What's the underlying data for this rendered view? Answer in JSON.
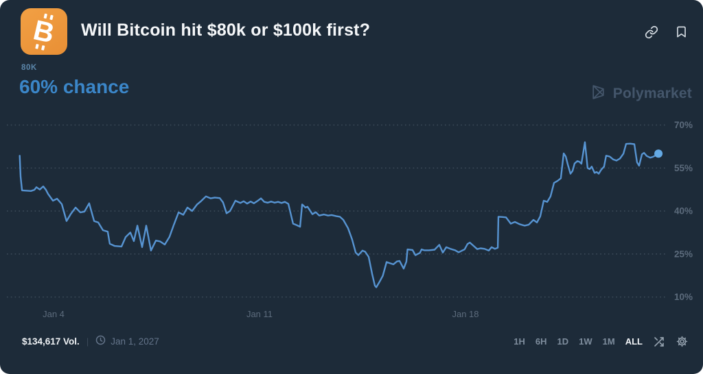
{
  "header": {
    "title": "Will Bitcoin hit $80k or $100k first?"
  },
  "icons": {
    "bitcoin_letter": "B"
  },
  "market": {
    "outcome_label": "80K",
    "chance_text": "60% chance"
  },
  "watermark": {
    "brand": "Polymarket"
  },
  "footer": {
    "volume": "$134,617 Vol.",
    "divider": "|",
    "date": "Jan 1, 2027",
    "ranges": [
      "1H",
      "6H",
      "1D",
      "1W",
      "1M",
      "ALL"
    ],
    "selected_range": "ALL"
  },
  "colors": {
    "background": "#1d2b39",
    "accent_orange": "#ef9a3f",
    "line_blue": "#5794d2",
    "dot_blue": "#64a9e4",
    "chance_blue": "#3b86c8",
    "outcome_blue": "#5b86aa",
    "grid_gray": "#8c9baa",
    "axis_label_gray": "#5c6b7c",
    "muted_gray": "#7e8d9d",
    "white": "#f5f7f9"
  },
  "chart_data": {
    "type": "line",
    "title": "Will Bitcoin hit $80k or $100k first?",
    "legend": "none",
    "grid": "dotted-horizontal",
    "x_unit": "day of January 2027",
    "x_domain": [
      2.85,
      24.56
    ],
    "x_ticks": [
      {
        "label": "Jan 4",
        "day": 4
      },
      {
        "label": "Jan 11",
        "day": 11
      },
      {
        "label": "Jan 18",
        "day": 18
      }
    ],
    "y_unit": "percent chance",
    "y_ticks": [
      {
        "label": "70%",
        "value": 70
      },
      {
        "label": "55%",
        "value": 55
      },
      {
        "label": "40%",
        "value": 40
      },
      {
        "label": "25%",
        "value": 25
      },
      {
        "label": "10%",
        "value": 10
      }
    ],
    "current_value_pct": 60,
    "series": [
      {
        "name": "80K",
        "points": [
          [
            2.85,
            59.3
          ],
          [
            2.88,
            52.0
          ],
          [
            2.93,
            47.2
          ],
          [
            3.23,
            47.0
          ],
          [
            3.35,
            47.4
          ],
          [
            3.42,
            48.3
          ],
          [
            3.53,
            47.5
          ],
          [
            3.65,
            48.6
          ],
          [
            3.74,
            47.4
          ],
          [
            3.81,
            46.0
          ],
          [
            3.98,
            43.6
          ],
          [
            4.12,
            44.3
          ],
          [
            4.28,
            42.4
          ],
          [
            4.44,
            36.5
          ],
          [
            4.58,
            38.9
          ],
          [
            4.75,
            41.2
          ],
          [
            4.91,
            39.5
          ],
          [
            5.05,
            39.8
          ],
          [
            5.21,
            42.7
          ],
          [
            5.38,
            36.5
          ],
          [
            5.52,
            36.0
          ],
          [
            5.68,
            33.3
          ],
          [
            5.84,
            32.8
          ],
          [
            5.91,
            28.6
          ],
          [
            6.08,
            27.8
          ],
          [
            6.31,
            27.6
          ],
          [
            6.45,
            30.9
          ],
          [
            6.61,
            32.5
          ],
          [
            6.73,
            29.5
          ],
          [
            6.85,
            34.9
          ],
          [
            7.01,
            27.4
          ],
          [
            7.15,
            34.9
          ],
          [
            7.31,
            26.2
          ],
          [
            7.48,
            29.7
          ],
          [
            7.62,
            29.4
          ],
          [
            7.78,
            28.3
          ],
          [
            7.94,
            31.0
          ],
          [
            8.08,
            35.0
          ],
          [
            8.25,
            39.5
          ],
          [
            8.41,
            38.7
          ],
          [
            8.55,
            41.2
          ],
          [
            8.71,
            40.0
          ],
          [
            8.88,
            42.3
          ],
          [
            9.02,
            43.5
          ],
          [
            9.18,
            45.1
          ],
          [
            9.34,
            44.4
          ],
          [
            9.48,
            44.7
          ],
          [
            9.65,
            44.5
          ],
          [
            9.76,
            43.0
          ],
          [
            9.88,
            39.2
          ],
          [
            10.0,
            40.0
          ],
          [
            10.18,
            43.6
          ],
          [
            10.35,
            42.8
          ],
          [
            10.46,
            43.4
          ],
          [
            10.58,
            42.6
          ],
          [
            10.7,
            43.3
          ],
          [
            10.81,
            42.7
          ],
          [
            10.93,
            43.5
          ],
          [
            11.05,
            44.4
          ],
          [
            11.16,
            43.2
          ],
          [
            11.28,
            42.9
          ],
          [
            11.4,
            43.3
          ],
          [
            11.51,
            42.9
          ],
          [
            11.63,
            43.2
          ],
          [
            11.75,
            42.8
          ],
          [
            11.86,
            43.2
          ],
          [
            11.98,
            42.5
          ],
          [
            12.14,
            35.6
          ],
          [
            12.28,
            35.0
          ],
          [
            12.38,
            34.5
          ],
          [
            12.45,
            42.3
          ],
          [
            12.56,
            41.2
          ],
          [
            12.63,
            41.5
          ],
          [
            12.8,
            38.9
          ],
          [
            12.91,
            39.6
          ],
          [
            13.03,
            38.4
          ],
          [
            13.19,
            38.8
          ],
          [
            13.33,
            38.4
          ],
          [
            13.45,
            38.6
          ],
          [
            13.61,
            38.2
          ],
          [
            13.73,
            38.0
          ],
          [
            13.85,
            36.9
          ],
          [
            14.01,
            34.0
          ],
          [
            14.15,
            30.0
          ],
          [
            14.27,
            25.5
          ],
          [
            14.36,
            24.6
          ],
          [
            14.5,
            26.2
          ],
          [
            14.59,
            25.8
          ],
          [
            14.71,
            24.0
          ],
          [
            14.83,
            18.0
          ],
          [
            14.92,
            14.0
          ],
          [
            14.97,
            13.4
          ],
          [
            15.09,
            15.5
          ],
          [
            15.19,
            17.4
          ],
          [
            15.32,
            22.2
          ],
          [
            15.43,
            21.8
          ],
          [
            15.55,
            21.4
          ],
          [
            15.67,
            22.4
          ],
          [
            15.76,
            22.6
          ],
          [
            15.9,
            19.9
          ],
          [
            15.99,
            22.3
          ],
          [
            16.03,
            26.6
          ],
          [
            16.2,
            26.4
          ],
          [
            16.3,
            24.6
          ],
          [
            16.45,
            25.4
          ],
          [
            16.51,
            26.6
          ],
          [
            16.6,
            26.3
          ],
          [
            16.76,
            26.3
          ],
          [
            16.95,
            26.5
          ],
          [
            17.11,
            28.2
          ],
          [
            17.23,
            25.5
          ],
          [
            17.35,
            27.4
          ],
          [
            17.49,
            26.8
          ],
          [
            17.65,
            26.3
          ],
          [
            17.77,
            25.6
          ],
          [
            17.97,
            26.6
          ],
          [
            18.07,
            28.5
          ],
          [
            18.15,
            29.0
          ],
          [
            18.28,
            27.8
          ],
          [
            18.4,
            26.7
          ],
          [
            18.51,
            27.0
          ],
          [
            18.65,
            26.8
          ],
          [
            18.79,
            26.2
          ],
          [
            18.89,
            27.4
          ],
          [
            19.0,
            26.8
          ],
          [
            19.1,
            27.2
          ],
          [
            19.12,
            38.0
          ],
          [
            19.26,
            37.9
          ],
          [
            19.38,
            37.8
          ],
          [
            19.54,
            35.6
          ],
          [
            19.68,
            36.2
          ],
          [
            19.84,
            35.4
          ],
          [
            20.01,
            34.9
          ],
          [
            20.15,
            35.2
          ],
          [
            20.31,
            36.9
          ],
          [
            20.43,
            36.0
          ],
          [
            20.54,
            38.1
          ],
          [
            20.66,
            43.6
          ],
          [
            20.78,
            43.2
          ],
          [
            20.89,
            45.1
          ],
          [
            21.01,
            49.8
          ],
          [
            21.13,
            50.5
          ],
          [
            21.24,
            51.4
          ],
          [
            21.34,
            60.1
          ],
          [
            21.41,
            59.0
          ],
          [
            21.48,
            56.2
          ],
          [
            21.57,
            53.0
          ],
          [
            21.64,
            54.0
          ],
          [
            21.71,
            56.6
          ],
          [
            21.8,
            57.4
          ],
          [
            21.87,
            57.2
          ],
          [
            21.94,
            56.5
          ],
          [
            22.06,
            64.0
          ],
          [
            22.15,
            55.0
          ],
          [
            22.22,
            54.6
          ],
          [
            22.29,
            55.5
          ],
          [
            22.39,
            53.3
          ],
          [
            22.46,
            53.6
          ],
          [
            22.53,
            53.0
          ],
          [
            22.62,
            54.5
          ],
          [
            22.71,
            55.5
          ],
          [
            22.78,
            59.3
          ],
          [
            22.9,
            59.0
          ],
          [
            23.02,
            58.0
          ],
          [
            23.13,
            57.6
          ],
          [
            23.25,
            58.3
          ],
          [
            23.37,
            60.0
          ],
          [
            23.46,
            63.4
          ],
          [
            23.6,
            63.5
          ],
          [
            23.74,
            63.3
          ],
          [
            23.83,
            57.0
          ],
          [
            23.9,
            55.8
          ],
          [
            24.0,
            59.8
          ],
          [
            24.07,
            60.3
          ],
          [
            24.16,
            59.2
          ],
          [
            24.28,
            58.6
          ],
          [
            24.37,
            58.9
          ],
          [
            24.46,
            59.4
          ],
          [
            24.56,
            60.0
          ]
        ]
      }
    ]
  }
}
